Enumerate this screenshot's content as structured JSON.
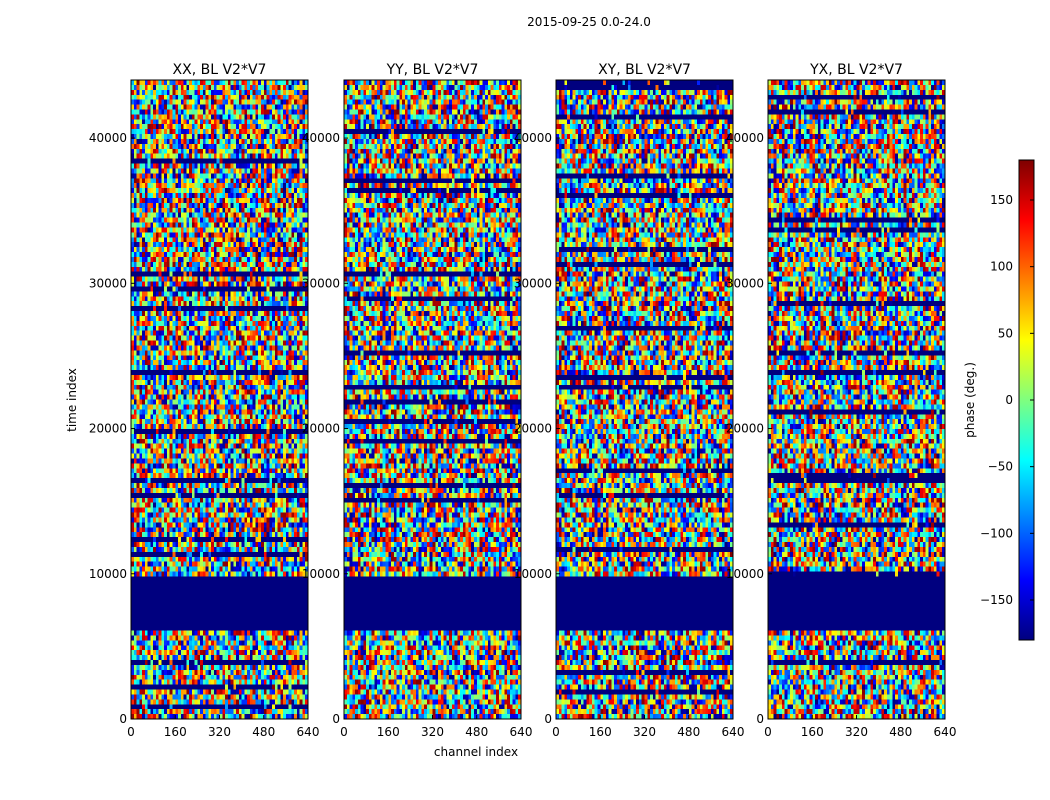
{
  "chart_data": {
    "type": "heatmap",
    "suptitle": "2015-09-25 0.0-24.0",
    "xlabel": "channel index",
    "ylabel": "time index",
    "xlim": [
      0,
      640
    ],
    "ylim": [
      0,
      44000
    ],
    "xticks": [
      0,
      160,
      320,
      480,
      640
    ],
    "yticks": [
      0,
      10000,
      20000,
      30000,
      40000
    ],
    "panels": [
      {
        "title": "XX, BL V2*V7"
      },
      {
        "title": "YY, BL V2*V7"
      },
      {
        "title": "XY, BL V2*V7"
      },
      {
        "title": "YX, BL V2*V7"
      }
    ],
    "colorbar": {
      "label": "phase (deg.)",
      "vmin": -180,
      "vmax": 180,
      "ticks": [
        -150,
        -100,
        -50,
        0,
        50,
        100,
        150
      ],
      "tick_labels": [
        "−150",
        "−100",
        "−50",
        "0",
        "50",
        "100",
        "150"
      ],
      "colormap": "jet",
      "colors": [
        "#00007f",
        "#0000ff",
        "#007fff",
        "#00ffff",
        "#7fff7f",
        "#ffff00",
        "#ff7f00",
        "#ff0000",
        "#7f0000"
      ]
    }
  }
}
